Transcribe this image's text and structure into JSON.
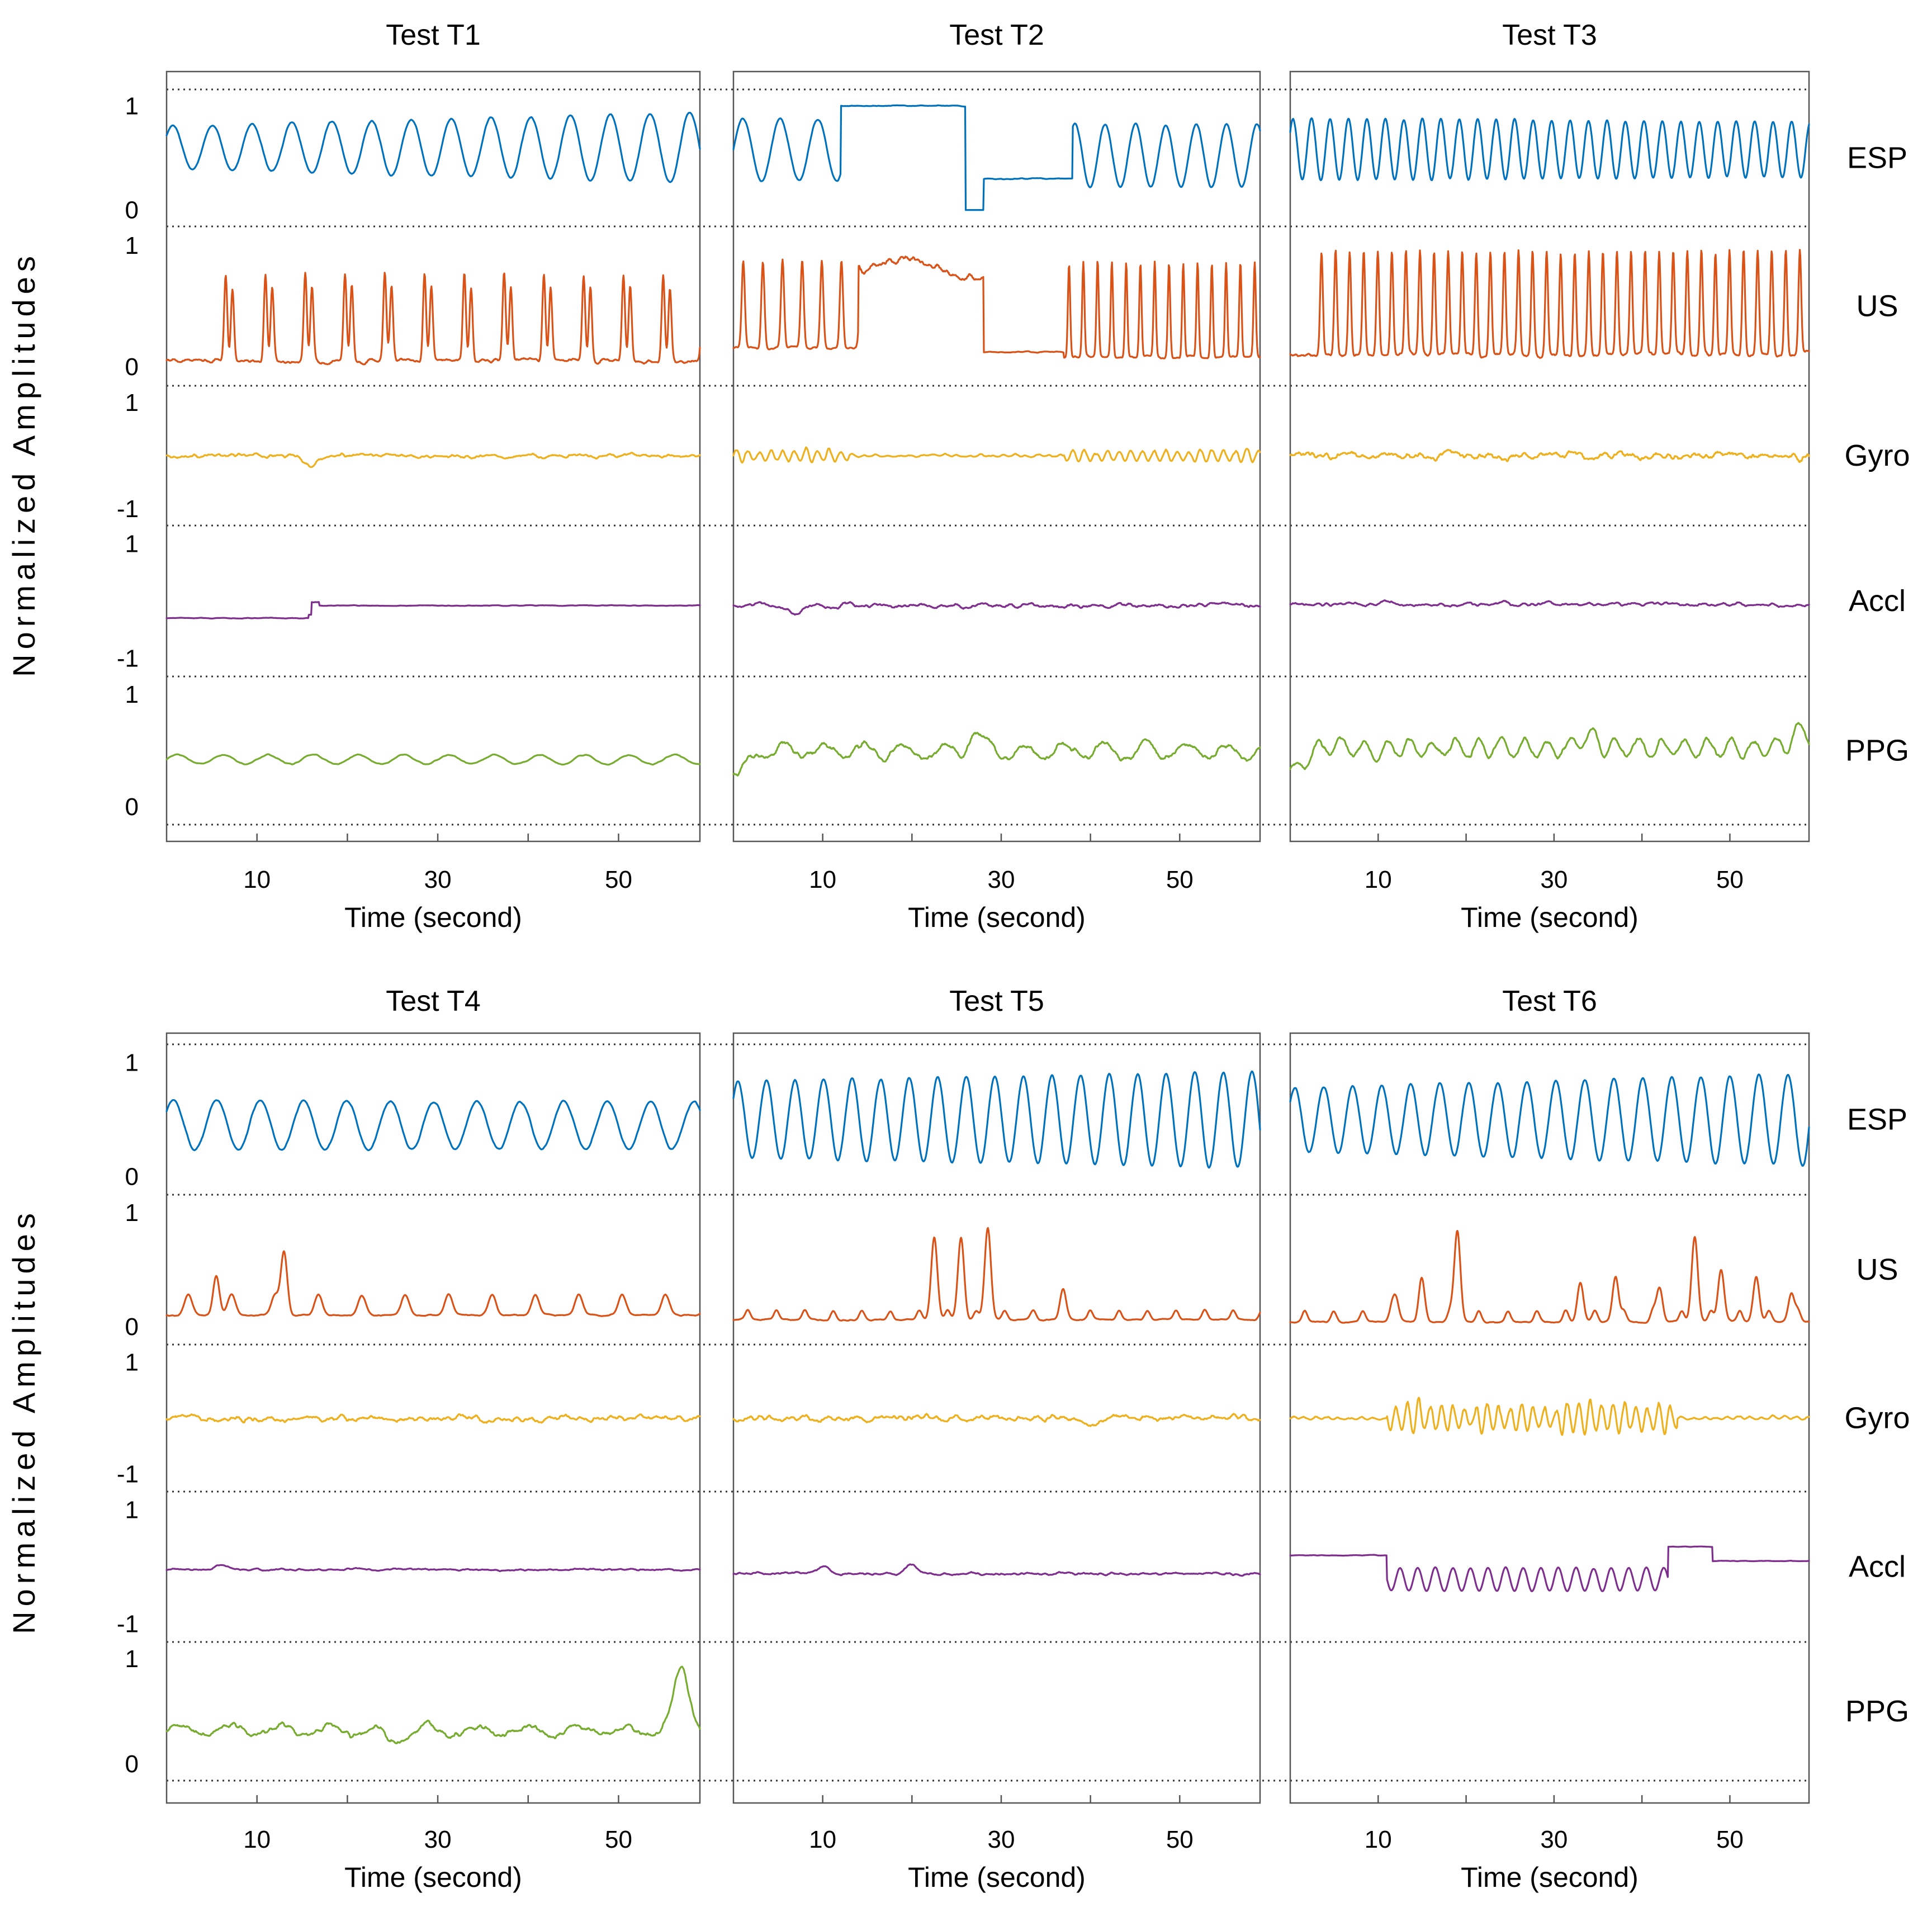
{
  "chart_data": {
    "type": "line",
    "ylabel": "Normalized Amplitudes",
    "xlabel": "Time (second)",
    "xlim": [
      0,
      59
    ],
    "xticks": [
      10,
      30,
      50
    ],
    "channels": [
      {
        "name": "ESP",
        "color": "#0072BD",
        "ylim": [
          0,
          1
        ],
        "ticks": [
          {
            "v": 1,
            "label": "1"
          },
          {
            "v": 0,
            "label": "0"
          }
        ]
      },
      {
        "name": "US",
        "color": "#D95319",
        "ylim": [
          0,
          1
        ],
        "ticks": [
          {
            "v": 1,
            "label": "1"
          },
          {
            "v": 0,
            "label": "0"
          }
        ]
      },
      {
        "name": "Gyro",
        "color": "#EDB120",
        "ylim": [
          -1,
          1
        ],
        "ticks": [
          {
            "v": 1,
            "label": "1"
          },
          {
            "v": -1,
            "label": "-1"
          }
        ]
      },
      {
        "name": "Accl",
        "color": "#7E2F8E",
        "ylim": [
          -1,
          1
        ],
        "ticks": [
          {
            "v": 1,
            "label": "1"
          },
          {
            "v": -1,
            "label": "-1"
          }
        ]
      },
      {
        "name": "PPG",
        "color": "#77AC30",
        "ylim": [
          0,
          1
        ],
        "ticks": [
          {
            "v": 1,
            "label": "1"
          },
          {
            "v": 0,
            "label": "0"
          }
        ]
      }
    ],
    "rows": [
      {
        "panels": [
          {
            "title": "Test T1",
            "channels": {
              "ESP": {
                "mode": "osc",
                "base": 0.6,
                "amp": 0.34,
                "period": 4.4,
                "start": 0.6,
                "end": 1.0
              },
              "US": {
                "mode": "spikes",
                "base": 0.05,
                "peak": 0.72,
                "period": 4.4,
                "width": 0.55,
                "pairs": true,
                "start": 5,
                "end": 59
              },
              "Gyro": {
                "mode": "noise",
                "base": 0.0,
                "amp": 0.06,
                "events": [
                  {
                    "t": 16,
                    "d": -0.18
                  }
                ]
              },
              "Accl": {
                "mode": "step",
                "before": -0.3,
                "after": -0.08,
                "at": 16,
                "noise": 0.01
              },
              "PPG": {
                "mode": "slow",
                "base": 0.42,
                "amp": 0.04,
                "period": 5
              }
            }
          },
          {
            "title": "Test T2",
            "channels": {
              "ESP": {
                "mode": "segments",
                "segs": [
                  [
                    0,
                    12,
                    "osc",
                    0.58,
                    0.3,
                    4.2
                  ],
                  [
                    12,
                    26,
                    "flat",
                    1.0
                  ],
                  [
                    28,
                    38,
                    "flat",
                    0.3
                  ],
                  [
                    38,
                    59,
                    "osc",
                    0.52,
                    0.3,
                    3.4
                  ]
                ]
              },
              "US": {
                "mode": "segments",
                "segs": [
                  [
                    0,
                    14,
                    "spk",
                    0.15,
                    0.72,
                    2.2
                  ],
                  [
                    14,
                    28,
                    "hump",
                    0.75
                  ],
                  [
                    28,
                    37,
                    "flat",
                    0.12
                  ],
                  [
                    37,
                    59,
                    "spk",
                    0.08,
                    0.78,
                    1.6
                  ]
                ]
              },
              "Gyro": {
                "mode": "burst",
                "base": 0.0,
                "amp": 0.14,
                "ranges": [
                  [
                    0,
                    13
                  ],
                  [
                    37,
                    59
                  ]
                ],
                "quiet": 0.02
              },
              "Accl": {
                "mode": "noise",
                "base": -0.08,
                "amp": 0.06,
                "events": [
                  {
                    "t": 7,
                    "d": -0.12
                  }
                ]
              },
              "PPG": {
                "mode": "wavy",
                "base": 0.5,
                "amp": 0.06,
                "period": 4.5,
                "events": [
                  {
                    "t": 0.5,
                    "d": -0.25
                  },
                  {
                    "t": 27,
                    "d": 0.12
                  }
                ]
              }
            }
          },
          {
            "title": "Test T3",
            "channels": {
              "ESP": {
                "mode": "osc",
                "base": 0.58,
                "amp": 0.33,
                "period": 2.1,
                "start": 0.9,
                "end": 0.8
              },
              "US": {
                "mode": "spikes",
                "base": 0.1,
                "peak": 0.85,
                "period": 1.6,
                "width": 0.5,
                "pairs": false,
                "start": 3,
                "end": 59
              },
              "Gyro": {
                "mode": "noise",
                "base": 0.0,
                "amp": 0.12,
                "events": []
              },
              "Accl": {
                "mode": "noise",
                "base": -0.06,
                "amp": 0.05,
                "events": [
                  {
                    "t": 11,
                    "d": 0.06
                  }
                ]
              },
              "PPG": {
                "mode": "wavy",
                "base": 0.52,
                "amp": 0.07,
                "period": 2.6,
                "events": [
                  {
                    "t": 0.5,
                    "d": -0.22
                  },
                  {
                    "t": 34,
                    "d": 0.12
                  },
                  {
                    "t": 58,
                    "d": 0.15
                  }
                ]
              }
            }
          }
        ]
      },
      {
        "panels": [
          {
            "title": "Test T4",
            "channels": {
              "ESP": {
                "mode": "osc",
                "base": 0.45,
                "amp": 0.4,
                "period": 4.8,
                "start": 0.55,
                "end": 0.5
              },
              "US": {
                "mode": "bumps",
                "base": 0.1,
                "amp": 0.18,
                "period": 4.8,
                "events": [
                  {
                    "t": 5.5,
                    "d": 0.35
                  },
                  {
                    "t": 13,
                    "d": 0.55
                  }
                ]
              },
              "Gyro": {
                "mode": "noise",
                "base": 0.0,
                "amp": 0.09,
                "events": []
              },
              "Accl": {
                "mode": "noise",
                "base": -0.05,
                "amp": 0.03,
                "events": [
                  {
                    "t": 6,
                    "d": 0.08
                  }
                ]
              },
              "PPG": {
                "mode": "wavy",
                "base": 0.32,
                "amp": 0.05,
                "period": 5.5,
                "events": [
                  {
                    "t": 25,
                    "d": -0.1
                  },
                  {
                    "t": 57,
                    "d": 0.55
                  }
                ]
              }
            }
          },
          {
            "title": "Test T5",
            "channels": {
              "ESP": {
                "mode": "osc",
                "base": 0.5,
                "amp": 0.42,
                "period": 3.2,
                "start": 0.8,
                "end": 1.0
              },
              "US": {
                "mode": "bumps",
                "base": 0.06,
                "amp": 0.08,
                "period": 3.2,
                "events": [
                  {
                    "t": 22.5,
                    "d": 0.72
                  },
                  {
                    "t": 25.5,
                    "d": 0.72
                  },
                  {
                    "t": 28.5,
                    "d": 0.8
                  },
                  {
                    "t": 37,
                    "d": 0.2
                  }
                ]
              },
              "Gyro": {
                "mode": "noise",
                "base": 0.0,
                "amp": 0.09,
                "events": [
                  {
                    "t": 39.5,
                    "d": -0.15
                  }
                ]
              },
              "Accl": {
                "mode": "noise",
                "base": -0.12,
                "amp": 0.04,
                "events": [
                  {
                    "t": 10,
                    "d": 0.12
                  },
                  {
                    "t": 20,
                    "d": 0.16
                  }
                ]
              }
            }
          },
          {
            "title": "Test T6",
            "channels": {
              "ESP": {
                "mode": "osc",
                "base": 0.5,
                "amp": 0.4,
                "period": 3.3,
                "start": 0.7,
                "end": 1.0
              },
              "US": {
                "mode": "bumps",
                "base": 0.04,
                "amp": 0.1,
                "period": 3.3,
                "events": [
                  {
                    "t": 12,
                    "d": 0.2
                  },
                  {
                    "t": 15,
                    "d": 0.3
                  },
                  {
                    "t": 19,
                    "d": 0.8
                  },
                  {
                    "t": 33,
                    "d": 0.35
                  },
                  {
                    "t": 37,
                    "d": 0.4
                  },
                  {
                    "t": 42,
                    "d": 0.3
                  },
                  {
                    "t": 46,
                    "d": 0.75
                  },
                  {
                    "t": 49,
                    "d": 0.45
                  },
                  {
                    "t": 53,
                    "d": 0.4
                  },
                  {
                    "t": 57,
                    "d": 0.25
                  }
                ]
              },
              "Gyro": {
                "mode": "burst",
                "base": 0.0,
                "amp": 0.3,
                "ranges": [
                  [
                    11,
                    44
                  ]
                ],
                "quiet": 0.03
              },
              "Accl": {
                "mode": "segments",
                "segs": [
                  [
                    0,
                    11,
                    "flat",
                    0.2
                  ],
                  [
                    11,
                    43,
                    "osc",
                    -0.22,
                    0.2,
                    2.0
                  ],
                  [
                    43,
                    48,
                    "flat",
                    0.35
                  ],
                  [
                    48,
                    59,
                    "flat",
                    0.1
                  ]
                ]
              }
            }
          }
        ]
      }
    ]
  }
}
